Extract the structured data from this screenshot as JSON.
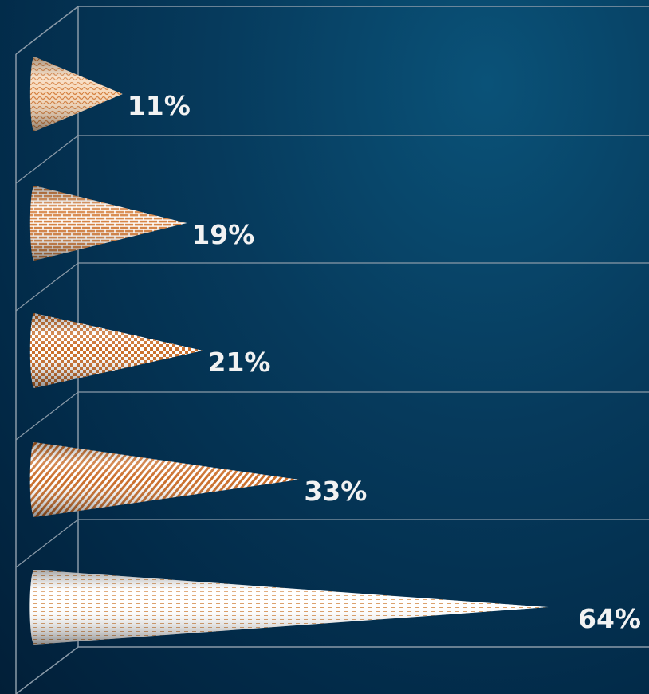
{
  "chart_data": {
    "type": "bar",
    "orientation": "horizontal",
    "shape": "cone",
    "categories": [],
    "values": [
      11,
      19,
      21,
      33,
      64
    ],
    "labels": [
      "11%",
      "19%",
      "21%",
      "33%",
      "64%"
    ],
    "title": "",
    "xlabel": "",
    "ylabel": "",
    "xlim": [
      0,
      70
    ],
    "grid": true,
    "legend": "none",
    "colors": {
      "background": "#063a5c",
      "gridline": "#8a9aa8",
      "label": "#f2f2f2",
      "cone_primary": "#c8661e",
      "cone_secondary": "#ffffff"
    },
    "patterns": [
      "wave",
      "brick",
      "checker",
      "diagonal-stripes",
      "thin-dashes"
    ]
  }
}
